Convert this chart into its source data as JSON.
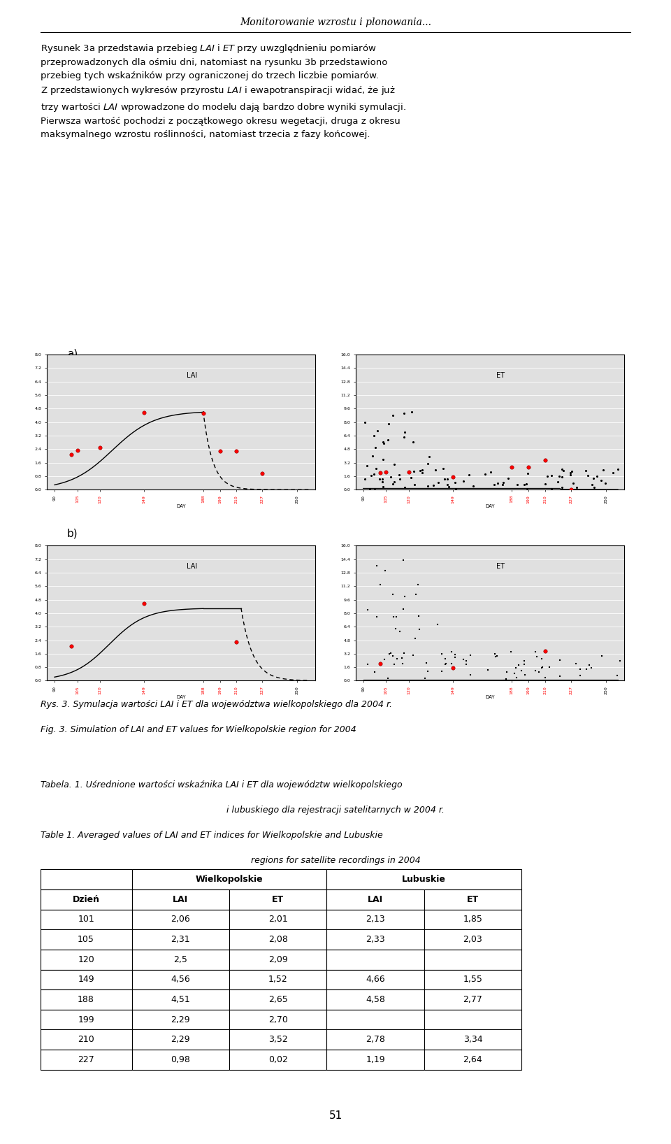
{
  "title_header": "Monitorowanie wzrostu i plonowania...",
  "label_a": "a)",
  "label_b": "b)",
  "fig_caption_pl": "Rys. 3. Symulacja wartości LAI i ET dla województwa wielkopolskiego dla 2004 r.",
  "fig_caption_en": "Fig. 3. Simulation of LAI and ET values for Wielkopolskie region for 2004",
  "table_caption_pl1": "Tabela. 1. Uśrednione wartości wskaźnika LAI i ET dla województw wielkopolskiego",
  "table_caption_pl2": "i lubuskiego dla rejestracji satelitarnych w 2004 r.",
  "table_caption_en1": "Table 1. Averaged values of LAI and ET indices for Wielkopolskie and Lubuskie",
  "table_caption_en2": "regions for satellite recordings in 2004",
  "table_data": [
    [
      "101",
      "2,06",
      "2,01",
      "2,13",
      "1,85"
    ],
    [
      "105",
      "2,31",
      "2,08",
      "2,33",
      "2,03"
    ],
    [
      "120",
      "2,5",
      "2,09",
      "",
      ""
    ],
    [
      "149",
      "4,56",
      "1,52",
      "4,66",
      "1,55"
    ],
    [
      "188",
      "4,51",
      "2,65",
      "4,58",
      "2,77"
    ],
    [
      "199",
      "2,29",
      "2,70",
      "",
      ""
    ],
    [
      "210",
      "2,29",
      "3,52",
      "2,78",
      "3,34"
    ],
    [
      "227",
      "0,98",
      "0,02",
      "1,19",
      "2,64"
    ]
  ],
  "page_number": "51",
  "background_color": "#ffffff"
}
